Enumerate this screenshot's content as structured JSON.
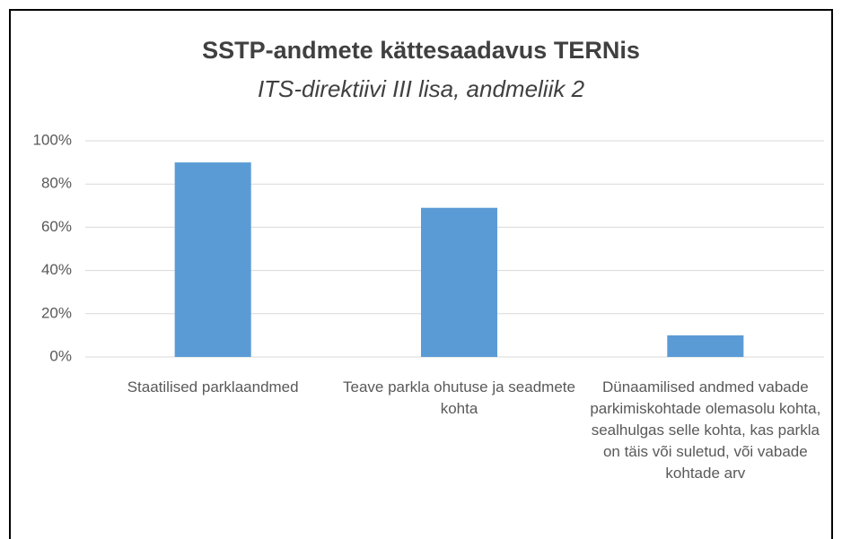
{
  "chart_data": {
    "type": "bar",
    "title": "SSTP-andmete kättesaadavus TERNis",
    "subtitle": "ITS-direktiivi III lisa, andmeliik 2",
    "categories": [
      "Staatilised parklaandmed",
      "Teave parkla ohutuse ja seadmete kohta",
      "Dünaamilised andmed vabade parkimiskohtade olemasolu kohta, sealhulgas selle kohta, kas parkla on täis või suletud, või vabade kohtade arv"
    ],
    "values": [
      90,
      69,
      10
    ],
    "color": "#5b9bd5",
    "ylim": [
      0,
      100
    ],
    "yticks": [
      {
        "value": 0,
        "label": "0%"
      },
      {
        "value": 20,
        "label": "20%"
      },
      {
        "value": 40,
        "label": "40%"
      },
      {
        "value": 60,
        "label": "60%"
      },
      {
        "value": 80,
        "label": "80%"
      },
      {
        "value": 100,
        "label": "100%"
      }
    ],
    "grid": true
  }
}
